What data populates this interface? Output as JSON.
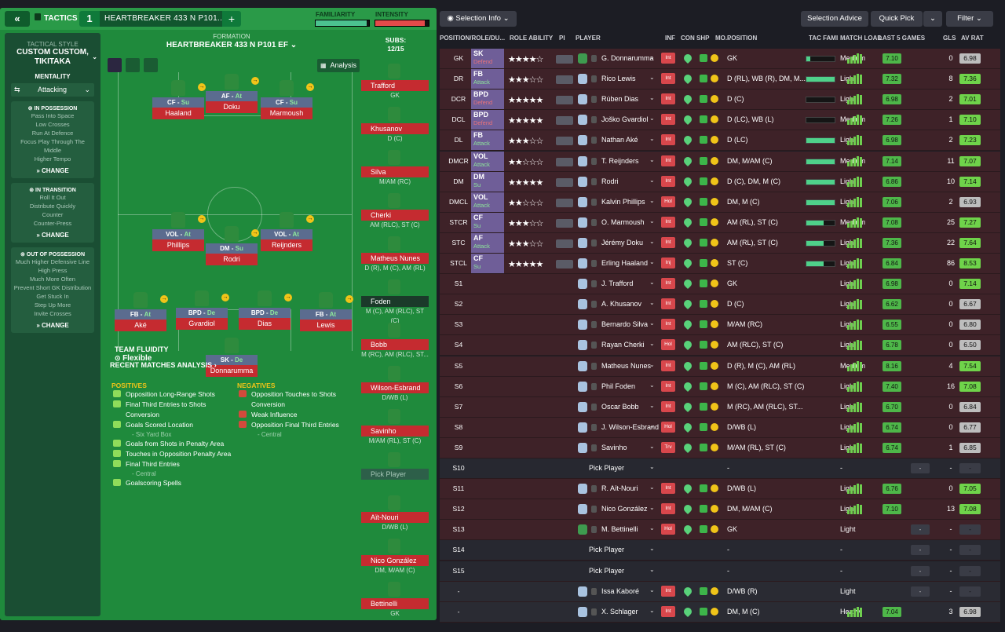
{
  "topbar": {
    "back_icon": "«",
    "tactics_label": "TACTICS",
    "tactic_number": "1",
    "tactic_name": "HEARTBREAKER 433 N  P101...",
    "plus_label": "+",
    "familiarity_label": "FAMILIARITY",
    "intensity_label": "INTENSITY",
    "familiarity_fill": 0.95,
    "intensity_fill": 0.92,
    "familiarity_color": "#4cc28f",
    "intensity_color": "#e34a4a"
  },
  "sidebar": {
    "tactical_style_label": "TACTICAL STYLE",
    "tactical_style_value": "CUSTOM CUSTOM, TIKITAKA",
    "mentality_label": "MENTALITY",
    "mentality_value": "Attacking",
    "in_possession": {
      "title": "IN POSSESSION",
      "items": [
        "Pass Into Space",
        "Low Crosses",
        "Run At Defence",
        "Focus Play Through The Middle",
        "Higher Tempo"
      ],
      "change": "CHANGE"
    },
    "in_transition": {
      "title": "IN TRANSITION",
      "items": [
        "Roll It Out",
        "Distribute Quickly",
        "Counter",
        "Counter-Press"
      ],
      "change": "CHANGE"
    },
    "out_of_possession": {
      "title": "OUT OF POSSESSION",
      "items": [
        "Much Higher Defensive Line",
        "High Press",
        "Much More Often",
        "Prevent Short GK Distribution",
        "Get Stuck In",
        "Step Up More",
        "Invite Crosses"
      ],
      "change": "CHANGE"
    }
  },
  "pitch": {
    "formation_label": "FORMATION",
    "formation_name": "HEARTBREAKER 433 N  P101 EF",
    "analysis_label": "Analysis",
    "team_fluidity_label": "TEAM FLUIDITY",
    "team_fluidity_value": "Flexible",
    "players": [
      {
        "role": "CF - ",
        "duty": "Su",
        "name": "Haaland"
      },
      {
        "role": "AF - ",
        "duty": "At",
        "name": "Doku"
      },
      {
        "role": "CF - ",
        "duty": "Su",
        "name": "Marmoush"
      },
      {
        "role": "VOL - ",
        "duty": "At",
        "name": "Phillips"
      },
      {
        "role": "DM - ",
        "duty": "Su",
        "name": "Rodri"
      },
      {
        "role": "VOL - ",
        "duty": "At",
        "name": "Reijnders"
      },
      {
        "role": "FB - ",
        "duty": "At",
        "name": "Aké"
      },
      {
        "role": "BPD - ",
        "duty": "De",
        "name": "Gvardiol"
      },
      {
        "role": "BPD - ",
        "duty": "De",
        "name": "Dias"
      },
      {
        "role": "FB - ",
        "duty": "At",
        "name": "Lewis"
      },
      {
        "role": "SK - ",
        "duty": "De",
        "name": "Donnarumma"
      }
    ]
  },
  "subs": {
    "label": "SUBS:",
    "count": "12/15",
    "items": [
      {
        "name": "Trafford",
        "pos": "GK"
      },
      {
        "name": "Khusanov",
        "pos": "D (C)"
      },
      {
        "name": "Silva",
        "pos": "M/AM (RC)"
      },
      {
        "name": "Cherki",
        "pos": "AM (RLC), ST (C)"
      },
      {
        "name": "Matheus Nunes",
        "pos": "D (R), M (C), AM (RL)"
      },
      {
        "name": "Foden",
        "pos": "M (C), AM (RLC), ST (C)"
      },
      {
        "name": "Bobb",
        "pos": "M (RC), AM (RLC), ST..."
      },
      {
        "name": "Wilson-Esbrand",
        "pos": "D/WB (L)"
      },
      {
        "name": "Savinho",
        "pos": "M/AM (RL), ST (C)"
      },
      {
        "name": "Pick Player",
        "pos": ""
      },
      {
        "name": "Aït-Nouri",
        "pos": "D/WB (L)"
      },
      {
        "name": "Nico González",
        "pos": "DM, M/AM (C)"
      },
      {
        "name": "Bettinelli",
        "pos": "GK"
      }
    ]
  },
  "analysis": {
    "title": "RECENT MATCHES ANALYSIS",
    "positives_label": "POSITIVES",
    "negatives_label": "NEGATIVES",
    "positives": [
      {
        "text": "Opposition Long-Range Shots",
        "sub": ""
      },
      {
        "text": "Final Third Entries to Shots Conversion",
        "sub": ""
      },
      {
        "text": "Goals Scored Location",
        "sub": "- Six Yard Box"
      },
      {
        "text": "Goals from Shots in Penalty Area",
        "sub": ""
      },
      {
        "text": "Touches in Opposition Penalty Area",
        "sub": ""
      },
      {
        "text": "Final Third Entries",
        "sub": "- Central"
      },
      {
        "text": "Goalscoring Spells",
        "sub": ""
      }
    ],
    "negatives": [
      {
        "text": "Opposition Touches to Shots Conversion",
        "sub": ""
      },
      {
        "text": "Weak Influence",
        "sub": ""
      },
      {
        "text": "Opposition Final Third Entries",
        "sub": "- Central"
      }
    ]
  },
  "toolbar": {
    "selection_info": "Selection Info",
    "selection_advice": "Selection Advice",
    "quick_pick": "Quick Pick",
    "filter": "Filter"
  },
  "table": {
    "headers": [
      "POSITION/ROLE/DU...",
      "ROLE ABILITY",
      "PI",
      "PLAYER",
      "INF",
      "CON",
      "SHP",
      "MO...",
      "POSITION",
      "TAC FAMI",
      "MATCH LOAD",
      "LAST 5 GAMES",
      "GLS",
      "AV RAT"
    ],
    "rows": [
      {
        "pos": "GK",
        "role": "SK",
        "duty": "Defend",
        "stars": "★★★★☆",
        "name": "G. Donnarumma",
        "inf": "Int",
        "position": "GK",
        "fam": 0.15,
        "load": "Medium",
        "last5": "7.10",
        "gls": "0",
        "avr": "6.98",
        "avr_color": "#bdbdbd"
      },
      {
        "pos": "DR",
        "role": "FB",
        "duty": "Attack",
        "stars": "★★★☆☆",
        "name": "Rico Lewis",
        "inf": "Int",
        "position": "D (RL), WB (R), DM, M...",
        "fam": 1,
        "load": "Light",
        "last5": "7.32",
        "gls": "8",
        "avr": "7.36",
        "avr_color": "#6fd34a"
      },
      {
        "pos": "DCR",
        "role": "BPD",
        "duty": "Defend",
        "stars": "★★★★★",
        "name": "Rúben Dias",
        "inf": "Int",
        "position": "D (C)",
        "fam": 0,
        "load": "Light",
        "last5": "6.98",
        "gls": "2",
        "avr": "7.01",
        "avr_color": "#6fd34a"
      },
      {
        "pos": "DCL",
        "role": "BPD",
        "duty": "Defend",
        "stars": "★★★★★",
        "name": "Joško Gvardiol",
        "inf": "Int",
        "position": "D (LC), WB (L)",
        "fam": 0,
        "load": "Medium",
        "last5": "7.26",
        "gls": "1",
        "avr": "7.10",
        "avr_color": "#6fd34a"
      },
      {
        "pos": "DL",
        "role": "FB",
        "duty": "Attack",
        "stars": "★★★☆☆",
        "name": "Nathan Aké",
        "inf": "Int",
        "position": "D (LC)",
        "fam": 1,
        "load": "Light",
        "last5": "6.98",
        "gls": "2",
        "avr": "7.23",
        "avr_color": "#6fd34a"
      },
      {
        "pos": "DMCR",
        "role": "VOL",
        "duty": "Attack",
        "stars": "★★☆☆☆",
        "name": "T. Reijnders",
        "inf": "Int",
        "position": "DM, M/AM (C)",
        "fam": 1,
        "load": "Medium",
        "last5": "7.14",
        "gls": "11",
        "avr": "7.07",
        "avr_color": "#6fd34a"
      },
      {
        "pos": "DM",
        "role": "DM",
        "duty": "Su",
        "stars": "★★★★★",
        "name": "Rodri",
        "inf": "Int",
        "position": "D (C), DM, M (C)",
        "fam": 1,
        "load": "Light",
        "last5": "6.86",
        "gls": "10",
        "avr": "7.14",
        "avr_color": "#6fd34a"
      },
      {
        "pos": "DMCL",
        "role": "VOL",
        "duty": "Attack",
        "stars": "★★☆☆☆",
        "name": "Kalvin Phillips",
        "inf": "Hol",
        "position": "DM, M (C)",
        "fam": 1,
        "load": "Light",
        "last5": "7.06",
        "gls": "2",
        "avr": "6.93",
        "avr_color": "#bdbdbd"
      },
      {
        "pos": "STCR",
        "role": "CF",
        "duty": "Su",
        "stars": "★★★☆☆",
        "name": "O. Marmoush",
        "inf": "Int",
        "position": "AM (RL), ST (C)",
        "fam": 0.6,
        "load": "Medium",
        "last5": "7.08",
        "gls": "25",
        "avr": "7.27",
        "avr_color": "#6fd34a"
      },
      {
        "pos": "STC",
        "role": "AF",
        "duty": "Attack",
        "stars": "★★★☆☆",
        "name": "Jérémy Doku",
        "inf": "Int",
        "position": "AM (RL), ST (C)",
        "fam": 0.6,
        "load": "Light",
        "last5": "7.36",
        "gls": "22",
        "avr": "7.64",
        "avr_color": "#6fd34a"
      },
      {
        "pos": "STCL",
        "role": "CF",
        "duty": "Su",
        "stars": "★★★★★",
        "name": "Erling Haaland",
        "inf": "Inj",
        "position": "ST (C)",
        "fam": 0.6,
        "load": "Light",
        "last5": "6.84",
        "gls": "86",
        "avr": "8.53",
        "avr_color": "#6fd34a"
      },
      {
        "pos": "S1",
        "role": "",
        "duty": "",
        "stars": "",
        "name": "J. Trafford",
        "inf": "Int",
        "position": "GK",
        "fam": -1,
        "load": "Light",
        "last5": "6.98",
        "gls": "0",
        "avr": "7.14",
        "avr_color": "#6fd34a"
      },
      {
        "pos": "S2",
        "role": "",
        "duty": "",
        "stars": "",
        "name": "A. Khusanov",
        "inf": "Int",
        "position": "D (C)",
        "fam": -1,
        "load": "Light",
        "last5": "6.62",
        "gls": "0",
        "avr": "6.67",
        "avr_color": "#bdbdbd"
      },
      {
        "pos": "S3",
        "role": "",
        "duty": "",
        "stars": "",
        "name": "Bernardo Silva",
        "inf": "Int",
        "position": "M/AM (RC)",
        "fam": -1,
        "load": "Light",
        "last5": "6.55",
        "gls": "0",
        "avr": "6.80",
        "avr_color": "#bdbdbd"
      },
      {
        "pos": "S4",
        "role": "",
        "duty": "",
        "stars": "",
        "name": "Rayan Cherki",
        "inf": "Hol",
        "position": "AM (RLC), ST (C)",
        "fam": -1,
        "load": "Light",
        "last5": "6.78",
        "gls": "0",
        "avr": "6.50",
        "avr_color": "#bdbdbd"
      },
      {
        "pos": "S5",
        "role": "",
        "duty": "",
        "stars": "",
        "name": "Matheus Nunes",
        "inf": "Int",
        "position": "D (R), M (C), AM (RL)",
        "fam": -1,
        "load": "Medium",
        "last5": "8.16",
        "gls": "4",
        "avr": "7.54",
        "avr_color": "#6fd34a"
      },
      {
        "pos": "S6",
        "role": "",
        "duty": "",
        "stars": "",
        "name": "Phil Foden",
        "inf": "Int",
        "position": "M (C), AM (RLC), ST (C)",
        "fam": -1,
        "load": "Light",
        "last5": "7.40",
        "gls": "16",
        "avr": "7.08",
        "avr_color": "#6fd34a"
      },
      {
        "pos": "S7",
        "role": "",
        "duty": "",
        "stars": "",
        "name": "Oscar Bobb",
        "inf": "Int",
        "position": "M (RC), AM (RLC), ST...",
        "fam": -1,
        "load": "Light",
        "last5": "6.70",
        "gls": "0",
        "avr": "6.84",
        "avr_color": "#bdbdbd"
      },
      {
        "pos": "S8",
        "role": "",
        "duty": "",
        "stars": "",
        "name": "J. Wilson-Esbrand",
        "inf": "Hol",
        "position": "D/WB (L)",
        "fam": -1,
        "load": "Light",
        "last5": "6.74",
        "gls": "0",
        "avr": "6.77",
        "avr_color": "#bdbdbd"
      },
      {
        "pos": "S9",
        "role": "",
        "duty": "",
        "stars": "",
        "name": "Savinho",
        "inf": "Trv",
        "position": "M/AM (RL), ST (C)",
        "fam": -1,
        "load": "Light",
        "last5": "6.74",
        "gls": "1",
        "avr": "6.85",
        "avr_color": "#bdbdbd"
      },
      {
        "pos": "S10",
        "role": "",
        "duty": "",
        "stars": "",
        "name": "Pick Player",
        "inf": "",
        "position": "-",
        "fam": -1,
        "load": "-",
        "last5": "-",
        "gls": "-",
        "avr": "-",
        "avr_color": "#3a3c46",
        "empty": true
      },
      {
        "pos": "S11",
        "role": "",
        "duty": "",
        "stars": "",
        "name": "R. Aït-Nouri",
        "inf": "Int",
        "position": "D/WB (L)",
        "fam": -1,
        "load": "Light",
        "last5": "6.76",
        "gls": "0",
        "avr": "7.05",
        "avr_color": "#6fd34a"
      },
      {
        "pos": "S12",
        "role": "",
        "duty": "",
        "stars": "",
        "name": "Nico González",
        "inf": "Int",
        "position": "DM, M/AM (C)",
        "fam": -1,
        "load": "Light",
        "last5": "7.10",
        "gls": "13",
        "avr": "7.08",
        "avr_color": "#6fd34a"
      },
      {
        "pos": "S13",
        "role": "",
        "duty": "",
        "stars": "",
        "name": "M. Bettinelli",
        "inf": "Hol",
        "position": "GK",
        "fam": -1,
        "load": "Light",
        "last5": "-",
        "gls": "-",
        "avr": "-",
        "avr_color": "#3a3c46"
      },
      {
        "pos": "S14",
        "role": "",
        "duty": "",
        "stars": "",
        "name": "Pick Player",
        "inf": "",
        "position": "-",
        "fam": -1,
        "load": "-",
        "last5": "-",
        "gls": "-",
        "avr": "-",
        "avr_color": "#3a3c46",
        "empty": true
      },
      {
        "pos": "S15",
        "role": "",
        "duty": "",
        "stars": "",
        "name": "Pick Player",
        "inf": "",
        "position": "-",
        "fam": -1,
        "load": "-",
        "last5": "-",
        "gls": "-",
        "avr": "-",
        "avr_color": "#3a3c46",
        "empty": true
      },
      {
        "pos": "-",
        "role": "",
        "duty": "",
        "stars": "",
        "name": "Issa Kaboré",
        "inf": "Int",
        "position": "D/WB (R)",
        "fam": -1,
        "load": "Light",
        "last5": "-",
        "gls": "-",
        "avr": "-",
        "avr_color": "#3a3c46",
        "dim": true
      },
      {
        "pos": "-",
        "role": "",
        "duty": "",
        "stars": "",
        "name": "X. Schlager",
        "inf": "Int",
        "position": "DM, M (C)",
        "fam": -1,
        "load": "Heavy",
        "last5": "7.04",
        "gls": "3",
        "avr": "6.98",
        "avr_color": "#bdbdbd",
        "dim": true
      }
    ]
  }
}
